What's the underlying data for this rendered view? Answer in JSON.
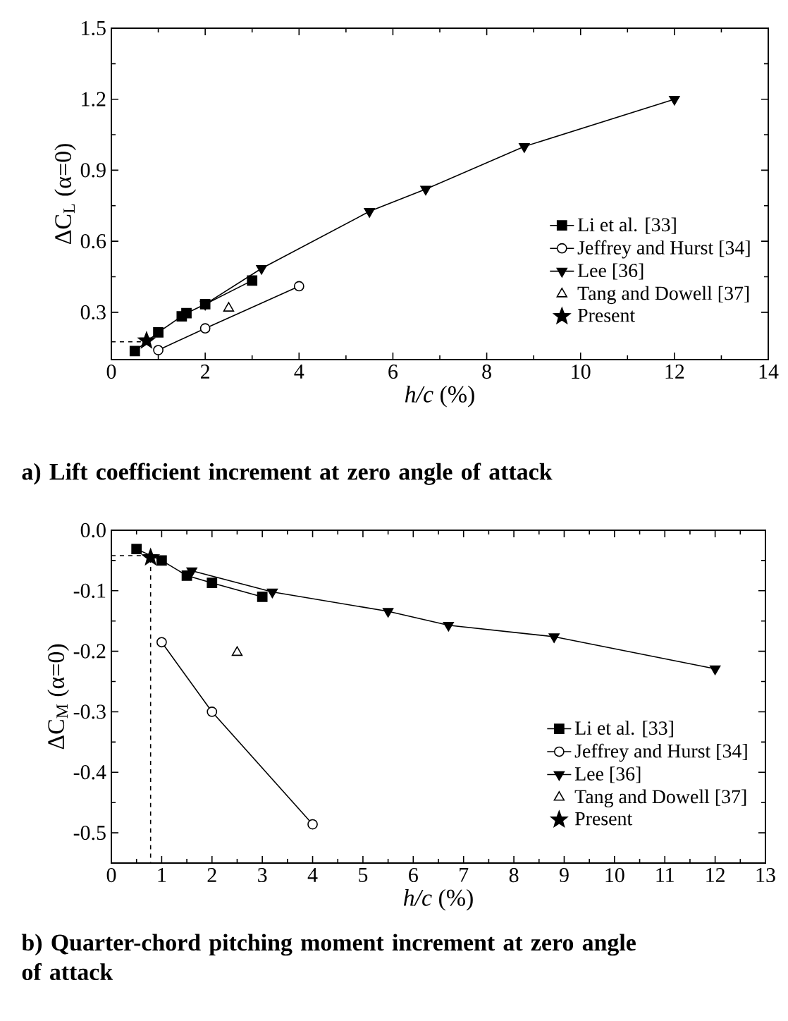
{
  "chart_data": [
    {
      "type": "line",
      "title": "a) Lift coefficient increment at zero angle of attack",
      "xlabel": "*h/c* (%)",
      "ylabel": "ΔC$_{L}$ (α=0)",
      "xlim": [
        0,
        14
      ],
      "ylim": [
        0.1,
        1.5
      ],
      "xticks": [
        0,
        2,
        4,
        6,
        8,
        10,
        12,
        14
      ],
      "yticks": [
        0.3,
        0.6,
        0.9,
        1.2,
        1.5
      ],
      "legend": "bottom right",
      "series": [
        {
          "name": "Li et al. [33]",
          "color": "#000000",
          "marker": "square",
          "x": [
            0.5,
            1.0,
            1.5,
            1.6,
            2.0,
            3.0
          ],
          "values": [
            0.136,
            0.215,
            0.283,
            0.296,
            0.334,
            0.434
          ]
        },
        {
          "name": "Jeffrey and Hurst [34]",
          "color": "#000000",
          "marker": "circle",
          "x": [
            1.0,
            2.0,
            4.0
          ],
          "values": [
            0.14,
            0.232,
            0.41
          ]
        },
        {
          "name": "Lee [36]",
          "color": "#000000",
          "marker": "triangle-down",
          "x": [
            2.0,
            3.2,
            5.5,
            6.7,
            8.8,
            12.0
          ],
          "values": [
            0.334,
            0.485,
            0.726,
            0.82,
            1.0,
            1.2
          ]
        },
        {
          "name": "Tang and Dowell [37]",
          "type": "scatter",
          "color": "#000000",
          "marker": "triangle",
          "x": [
            2.5
          ],
          "values": [
            0.317
          ]
        },
        {
          "name": "Present",
          "type": "scatter",
          "color": "#000000",
          "marker": "star",
          "x": [
            0.75
          ],
          "values": [
            0.18
          ]
        },
        {
          "color": "#000000",
          "marker": "none",
          "line_style": "dashed",
          "x": [
            0,
            0.75
          ],
          "values": [
            0.175,
            0.175
          ]
        }
      ]
    },
    {
      "type": "line",
      "title": "b) Quarter-chord pitching moment increment at zero angle of attack",
      "xlabel": "*h/c* (%)",
      "ylabel": "ΔC$_{M}$ (α=0)",
      "xlim": [
        0,
        13
      ],
      "ylim": [
        -0.55,
        0.0
      ],
      "xticks": [
        0,
        1,
        2,
        3,
        4,
        5,
        6,
        7,
        8,
        9,
        10,
        11,
        12,
        13
      ],
      "yticks": [
        {
          "value": -0.5,
          "label": "-0.5"
        },
        {
          "value": -0.4,
          "label": "-0.4"
        },
        {
          "value": -0.3,
          "label": "-0.3"
        },
        {
          "value": -0.2,
          "label": "-0.2"
        },
        {
          "value": -0.1,
          "label": "-0.1"
        },
        {
          "value": 0.0,
          "label": "0.0"
        }
      ],
      "legend": "bottom right",
      "series": [
        {
          "name": "Li et al. [33]",
          "color": "#000000",
          "marker": "square",
          "x": [
            0.5,
            1.0,
            1.5,
            2.0,
            3.0
          ],
          "values": [
            -0.031,
            -0.05,
            -0.075,
            -0.087,
            -0.11
          ]
        },
        {
          "name": "Jeffrey and Hurst [34]",
          "color": "#000000",
          "marker": "circle",
          "x": [
            1.0,
            2.0,
            4.0
          ],
          "values": [
            -0.185,
            -0.3,
            -0.486
          ]
        },
        {
          "name": "Lee [36]",
          "color": "#000000",
          "marker": "triangle-down",
          "x": [
            1.6,
            3.2,
            5.5,
            6.7,
            8.8,
            12.0
          ],
          "values": [
            -0.067,
            -0.102,
            -0.134,
            -0.157,
            -0.176,
            -0.229
          ]
        },
        {
          "name": "Tang and Dowell [37]",
          "type": "scatter",
          "color": "#000000",
          "marker": "triangle",
          "x": [
            2.5
          ],
          "values": [
            -0.202
          ]
        },
        {
          "name": "Present",
          "type": "scatter",
          "color": "#000000",
          "marker": "star",
          "x": [
            0.78
          ],
          "values": [
            -0.045
          ]
        },
        {
          "color": "#000000",
          "marker": "none",
          "line_style": "dashed",
          "x": [
            0,
            0.78,
            0.78
          ],
          "values": [
            -0.042,
            -0.042,
            -0.55
          ]
        }
      ]
    }
  ]
}
